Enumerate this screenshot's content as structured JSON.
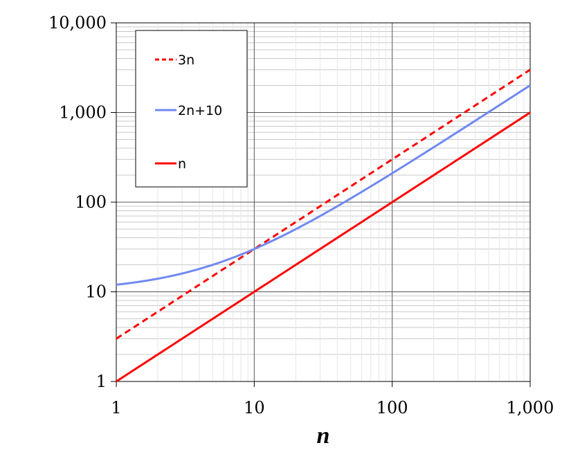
{
  "chart_data": {
    "type": "line",
    "xscale": "log",
    "yscale": "log",
    "xlim": [
      1,
      1000
    ],
    "ylim": [
      1,
      10000
    ],
    "xlabel": "n",
    "ylabel": "",
    "x_ticks": [
      1,
      10,
      100,
      1000
    ],
    "x_tick_labels": [
      "1",
      "10",
      "100",
      "1,000"
    ],
    "y_ticks": [
      1,
      10,
      100,
      1000,
      10000
    ],
    "y_tick_labels": [
      "1",
      "10",
      "100",
      "1,000",
      "10,000"
    ],
    "grid": true,
    "minor_grid": true,
    "legend_position": "top-left",
    "series": [
      {
        "name": "3n",
        "color": "#ff0000",
        "style": "dashed",
        "x": [
          1,
          2,
          3,
          5,
          7,
          10,
          20,
          30,
          50,
          70,
          100,
          200,
          300,
          500,
          700,
          1000
        ],
        "y": [
          3,
          6,
          9,
          15,
          21,
          30,
          60,
          90,
          150,
          210,
          300,
          600,
          900,
          1500,
          2100,
          3000
        ]
      },
      {
        "name": "2n+10",
        "color": "#7088f0",
        "style": "solid",
        "x": [
          1,
          2,
          3,
          5,
          7,
          10,
          20,
          30,
          50,
          70,
          100,
          200,
          300,
          500,
          700,
          1000
        ],
        "y": [
          12,
          14,
          16,
          20,
          24,
          30,
          50,
          70,
          110,
          150,
          210,
          410,
          610,
          1010,
          1410,
          2010
        ]
      },
      {
        "name": "n",
        "color": "#ff0000",
        "style": "solid",
        "x": [
          1,
          10,
          100,
          1000
        ],
        "y": [
          1,
          10,
          100,
          1000
        ]
      }
    ]
  }
}
